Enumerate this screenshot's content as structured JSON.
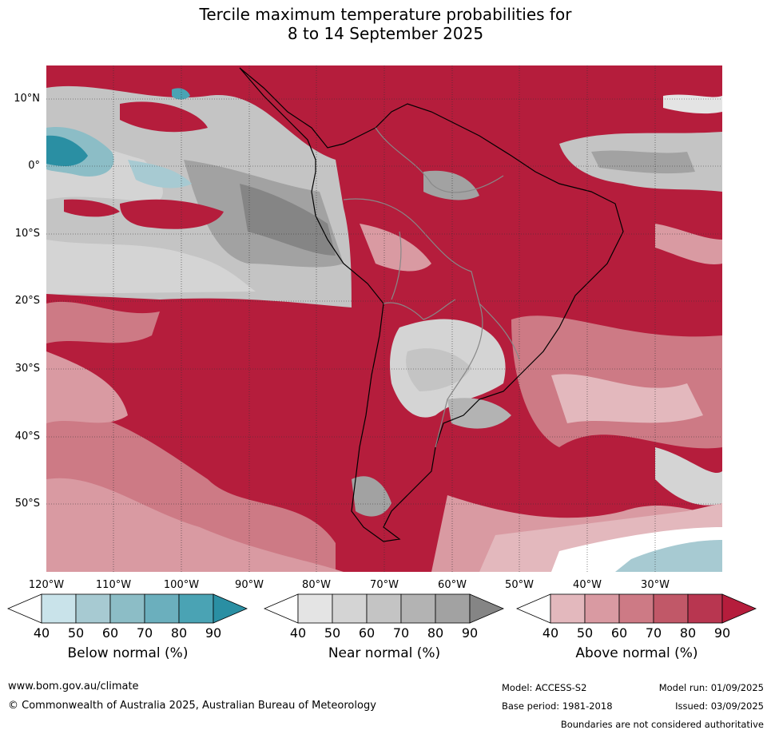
{
  "title_line1": "Tercile maximum temperature probabilities for",
  "title_line2": "8 to 14 September 2025",
  "lat_labels": [
    "10°N",
    "0°",
    "10°S",
    "20°S",
    "30°S",
    "40°S",
    "50°S"
  ],
  "lon_labels": [
    "120°W",
    "110°W",
    "100°W",
    "90°W",
    "80°W",
    "70°W",
    "60°W",
    "50°W",
    "40°W",
    "30°W"
  ],
  "colorbars": [
    {
      "title": "Below normal (%)",
      "ticks": [
        "40",
        "50",
        "60",
        "70",
        "80",
        "90"
      ],
      "colors": [
        "#c9e3ea",
        "#a7cad2",
        "#8cbdc6",
        "#6bafbd",
        "#4aa3b4",
        "#2a8fa3"
      ]
    },
    {
      "title": "Near normal (%)",
      "ticks": [
        "40",
        "50",
        "60",
        "70",
        "80",
        "90"
      ],
      "colors": [
        "#e4e4e4",
        "#d4d4d4",
        "#c4c4c4",
        "#b3b3b3",
        "#a2a2a2",
        "#858585"
      ]
    },
    {
      "title": "Above normal (%)",
      "ticks": [
        "40",
        "50",
        "60",
        "70",
        "80",
        "90"
      ],
      "colors": [
        "#e3b8bd",
        "#d99aa2",
        "#cd7a85",
        "#c15868",
        "#b83650",
        "#b51d3c"
      ]
    }
  ],
  "footer": {
    "website": "www.bom.gov.au/climate",
    "copyright": "© Commonwealth of Australia 2025, Australian Bureau of Meteorology",
    "model": "Model: ACCESS-S2",
    "base_period": "Base period: 1981-2018",
    "model_run": "Model run: 01/09/2025",
    "issued": "Issued: 03/09/2025",
    "boundaries": "Boundaries are not considered authoritative"
  }
}
